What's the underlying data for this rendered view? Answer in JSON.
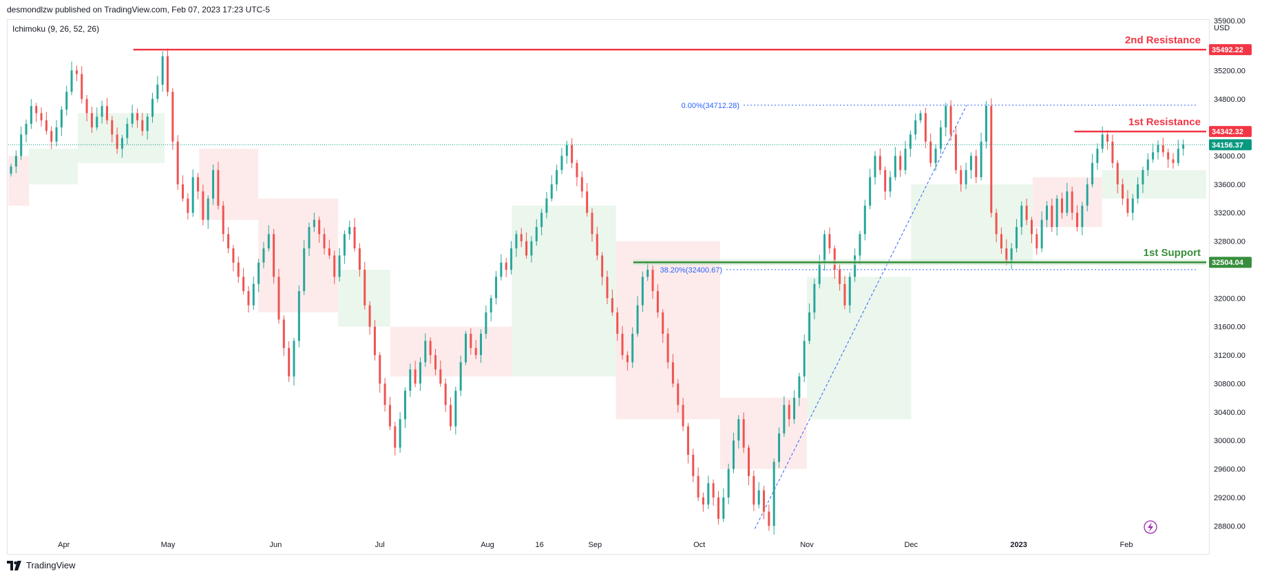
{
  "header": {
    "published_line": "desmondlzw published on TradingView.com, Feb 07, 2023 17:23 UTC-5"
  },
  "indicator": {
    "label": "Ichimoku (9, 26, 52, 26)"
  },
  "footer": {
    "brand": "TradingView"
  },
  "colors": {
    "up": "#26a69a",
    "down": "#ef5350",
    "resistance": "#f23645",
    "support": "#388e3c",
    "current": "#089981",
    "fib": "#2962ff",
    "cloud_bull": "#e8f5e9",
    "cloud_bear": "#fde8e8"
  },
  "chart_data": {
    "type": "candlestick",
    "currency": "USD",
    "ylim": [
      28600,
      35900
    ],
    "y_ticks": [
      28800,
      29200,
      29600,
      30000,
      30400,
      30800,
      31200,
      31600,
      32000,
      32400,
      32800,
      33200,
      33600,
      34000,
      34400,
      34800,
      35200,
      35600,
      35900
    ],
    "y_tick_labels": [
      "28800.00",
      "29200.00",
      "29600.00",
      "30000.00",
      "30400.00",
      "30800.00",
      "31200.00",
      "31600.00",
      "32000.00",
      "32400.00",
      "32800.00",
      "33200.00",
      "33600.00",
      "34000.00",
      "34400.00",
      "34800.00",
      "35200.00",
      "35600.00",
      "35900.00"
    ],
    "x_ticks": [
      {
        "label": "Apr",
        "day": 16
      },
      {
        "label": "May",
        "day": 46
      },
      {
        "label": "Jun",
        "day": 77
      },
      {
        "label": "Jul",
        "day": 107
      },
      {
        "label": "Aug",
        "day": 138
      },
      {
        "label": "16",
        "day": 153
      },
      {
        "label": "Sep",
        "day": 169
      },
      {
        "label": "Oct",
        "day": 199
      },
      {
        "label": "Nov",
        "day": 230
      },
      {
        "label": "Dec",
        "day": 260
      },
      {
        "label": "2023",
        "day": 291
      },
      {
        "label": "Feb",
        "day": 322
      }
    ],
    "closes": [
      33850,
      34000,
      34300,
      34450,
      34700,
      34600,
      34500,
      34350,
      34200,
      34400,
      34650,
      34900,
      35200,
      35150,
      34800,
      34600,
      34400,
      34550,
      34700,
      34500,
      34300,
      34100,
      34250,
      34450,
      34600,
      34500,
      34350,
      34550,
      34800,
      35000,
      35400,
      34900,
      34200,
      33600,
      33400,
      33200,
      33700,
      33500,
      33100,
      33400,
      33800,
      33300,
      32900,
      32700,
      32500,
      32300,
      32100,
      31900,
      32200,
      32500,
      32700,
      32900,
      32300,
      31700,
      31300,
      30900,
      31400,
      32100,
      32700,
      33000,
      33100,
      32900,
      32700,
      32600,
      32300,
      32600,
      32900,
      33000,
      32700,
      32400,
      31900,
      31600,
      31200,
      30800,
      30500,
      30200,
      29900,
      30300,
      30700,
      31000,
      30800,
      31100,
      31400,
      31200,
      31000,
      30800,
      30500,
      30200,
      30700,
      31100,
      31500,
      31300,
      31200,
      31500,
      31800,
      32000,
      32300,
      32500,
      32400,
      32700,
      32900,
      32800,
      32600,
      32800,
      33000,
      33200,
      33400,
      33600,
      33800,
      34000,
      34150,
      33900,
      33700,
      33500,
      33200,
      32900,
      32600,
      32300,
      32000,
      31800,
      31500,
      31200,
      31100,
      31500,
      31900,
      32300,
      32400,
      32100,
      31800,
      31500,
      31100,
      30800,
      30500,
      30200,
      29800,
      29500,
      29200,
      29100,
      29400,
      29200,
      28900,
      29200,
      29600,
      30000,
      30300,
      29900,
      29500,
      29100,
      29300,
      29000,
      28800,
      29700,
      30100,
      30500,
      30300,
      30600,
      30900,
      31400,
      31800,
      32200,
      32500,
      32900,
      32700,
      32400,
      32200,
      31900,
      32300,
      32600,
      32900,
      33300,
      33700,
      34000,
      33800,
      33500,
      33700,
      34000,
      33800,
      34100,
      34300,
      34500,
      34600,
      34200,
      33900,
      34100,
      34400,
      34700,
      34300,
      33800,
      33600,
      33800,
      34000,
      33700,
      34200,
      34700,
      33200,
      32900,
      32700,
      32500,
      32700,
      33000,
      33300,
      33100,
      32900,
      32700,
      33100,
      33300,
      33000,
      33400,
      33200,
      33500,
      33200,
      33000,
      33300,
      33600,
      33900,
      34100,
      34300,
      34200,
      33900,
      33600,
      33400,
      33200,
      33400,
      33600,
      33800,
      33950,
      34050,
      34150,
      34050,
      33950,
      33900,
      34100,
      34156.37
    ],
    "cloud_segments": [
      {
        "day_from": 0,
        "day_to": 6,
        "top": 34000,
        "bottom": 33300,
        "trend": "bear"
      },
      {
        "day_from": 6,
        "day_to": 20,
        "top": 34100,
        "bottom": 33600,
        "trend": "bull"
      },
      {
        "day_from": 20,
        "day_to": 45,
        "top": 34600,
        "bottom": 33900,
        "trend": "bull"
      },
      {
        "day_from": 55,
        "day_to": 72,
        "top": 34100,
        "bottom": 33100,
        "trend": "bear"
      },
      {
        "day_from": 72,
        "day_to": 95,
        "top": 33400,
        "bottom": 31800,
        "trend": "bear"
      },
      {
        "day_from": 95,
        "day_to": 110,
        "top": 32400,
        "bottom": 31600,
        "trend": "bull"
      },
      {
        "day_from": 110,
        "day_to": 145,
        "top": 31600,
        "bottom": 30900,
        "trend": "bear"
      },
      {
        "day_from": 145,
        "day_to": 175,
        "top": 33300,
        "bottom": 30900,
        "trend": "bull"
      },
      {
        "day_from": 175,
        "day_to": 205,
        "top": 32800,
        "bottom": 30300,
        "trend": "bear"
      },
      {
        "day_from": 205,
        "day_to": 230,
        "top": 30600,
        "bottom": 29600,
        "trend": "bear"
      },
      {
        "day_from": 230,
        "day_to": 260,
        "top": 32300,
        "bottom": 30300,
        "trend": "bull"
      },
      {
        "day_from": 260,
        "day_to": 295,
        "top": 33600,
        "bottom": 32500,
        "trend": "bull"
      },
      {
        "day_from": 295,
        "day_to": 315,
        "top": 33700,
        "bottom": 33000,
        "trend": "bear"
      },
      {
        "day_from": 315,
        "day_to": 345,
        "top": 33800,
        "bottom": 33400,
        "trend": "bull"
      }
    ],
    "levels": [
      {
        "name": "2nd Resistance",
        "price": 35492.22,
        "label": "35492.22",
        "kind": "resistance",
        "day_from": 36
      },
      {
        "name": "1st Resistance",
        "price": 34342.32,
        "label": "34342.32",
        "kind": "resistance",
        "day_from": 307
      },
      {
        "name": "1st Support",
        "price": 32504.04,
        "label": "32504.04",
        "kind": "support",
        "day_from": 180
      }
    ],
    "current_price": {
      "price": 34156.37,
      "label": "34156.37"
    },
    "fibonacci": [
      {
        "label": "0.00%(34712.28)",
        "price": 34712.28
      },
      {
        "label": "38.20%(32400.67)",
        "price": 32400.67
      }
    ],
    "fib_trend": {
      "day_from": 215,
      "price_from": 28760,
      "day_to": 276,
      "price_to": 34712.28
    }
  }
}
